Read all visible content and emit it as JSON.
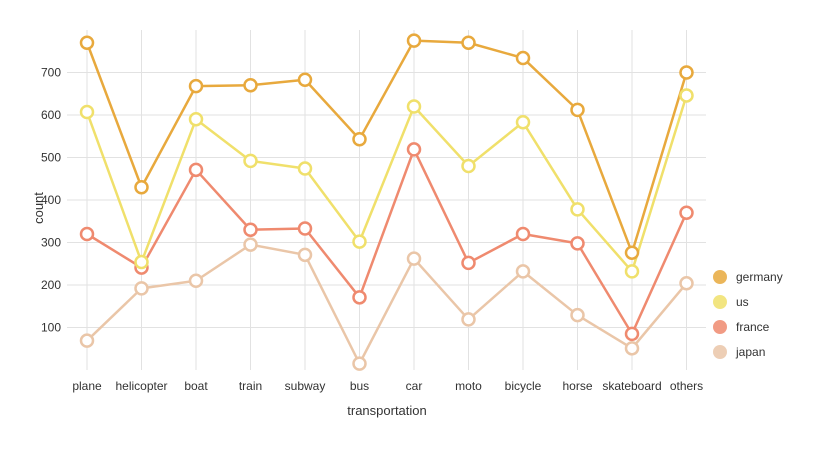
{
  "chart_data": {
    "type": "line",
    "xlabel": "transportation",
    "ylabel": "count",
    "ylim": [
      0,
      800
    ],
    "yticks": [
      100,
      200,
      300,
      400,
      500,
      600,
      700
    ],
    "grid": true,
    "legend_position": "right",
    "categories": [
      "plane",
      "helicopter",
      "boat",
      "train",
      "subway",
      "bus",
      "car",
      "moto",
      "bicycle",
      "horse",
      "skateboard",
      "others"
    ],
    "series": [
      {
        "name": "germany",
        "color": "#e8a93d",
        "values": [
          770,
          430,
          668,
          670,
          683,
          543,
          775,
          770,
          734,
          612,
          276,
          700
        ]
      },
      {
        "name": "us",
        "color": "#f0e06b",
        "values": [
          607,
          254,
          590,
          492,
          474,
          302,
          620,
          480,
          583,
          378,
          232,
          646
        ]
      },
      {
        "name": "france",
        "color": "#ef8a6f",
        "values": [
          320,
          241,
          471,
          330,
          333,
          171,
          519,
          252,
          320,
          298,
          85,
          370
        ]
      },
      {
        "name": "japan",
        "color": "#eac6a8",
        "values": [
          69,
          192,
          210,
          295,
          271,
          15,
          262,
          119,
          232,
          129,
          51,
          204
        ]
      }
    ]
  }
}
